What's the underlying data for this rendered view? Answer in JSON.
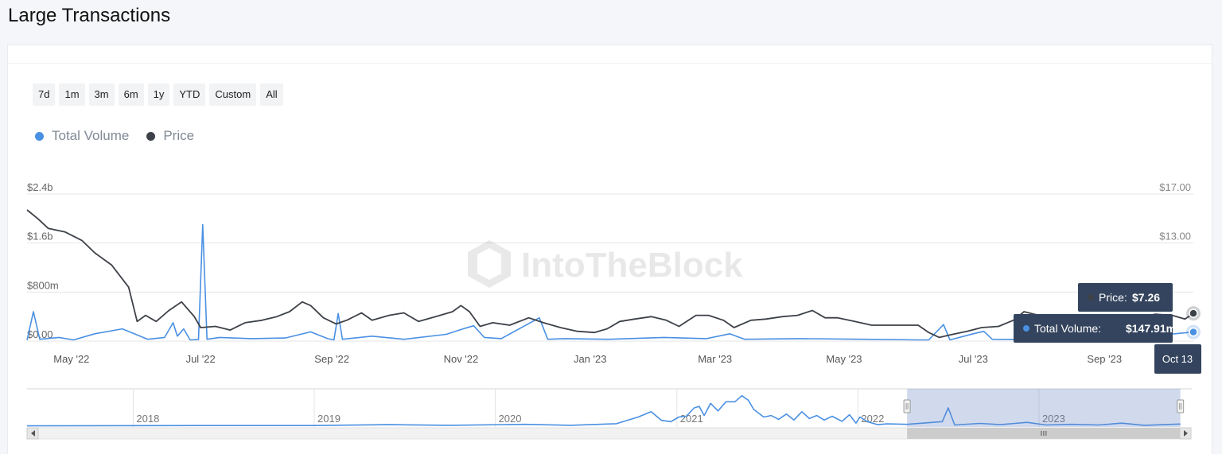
{
  "page": {
    "title": "Large Transactions"
  },
  "range_buttons": [
    "7d",
    "1m",
    "3m",
    "6m",
    "1y",
    "YTD",
    "Custom",
    "All"
  ],
  "legend": [
    {
      "label": "Total Volume",
      "color": "#4a90e2"
    },
    {
      "label": "Price",
      "color": "#3d4148"
    }
  ],
  "watermark": "IntoTheBlock",
  "tooltip": {
    "price_label": "Price:",
    "price_value": "$7.26",
    "volume_label": "Total Volume:",
    "volume_value": "$147.91m",
    "date": "Oct 13"
  },
  "chart_data": {
    "type": "line",
    "left_axis": {
      "ticks": [
        "$0.00",
        "$800m",
        "$1.6b",
        "$2.4b"
      ],
      "values": [
        0,
        800,
        1600,
        2400
      ],
      "unit": "millions USD"
    },
    "right_axis": {
      "ticks": [
        "$13.00",
        "$17.00"
      ],
      "values": [
        13,
        17
      ],
      "range": [
        5,
        17
      ]
    },
    "x_axis": {
      "tick_labels": [
        "May '22",
        "Jul '22",
        "Sep '22",
        "Nov '22",
        "Jan '23",
        "Mar '23",
        "May '23",
        "Jul '23",
        "Sep '23"
      ],
      "tick_dates": [
        "2022-05-01",
        "2022-07-01",
        "2022-09-01",
        "2022-11-01",
        "2023-01-01",
        "2023-03-01",
        "2023-05-01",
        "2023-07-01",
        "2023-09-01"
      ],
      "range": [
        "2022-04-10",
        "2023-10-13"
      ]
    },
    "grid": true,
    "legend_position": "top-left",
    "series": [
      {
        "name": "Price",
        "color": "#3d4148",
        "axis": "right",
        "points": [
          [
            "2022-04-10",
            15.7
          ],
          [
            "2022-04-15",
            15.0
          ],
          [
            "2022-04-20",
            14.2
          ],
          [
            "2022-04-28",
            13.9
          ],
          [
            "2022-05-06",
            13.2
          ],
          [
            "2022-05-12",
            12.2
          ],
          [
            "2022-05-20",
            11.2
          ],
          [
            "2022-05-28",
            9.4
          ],
          [
            "2022-06-01",
            6.6
          ],
          [
            "2022-06-05",
            7.1
          ],
          [
            "2022-06-10",
            6.6
          ],
          [
            "2022-06-16",
            7.5
          ],
          [
            "2022-06-22",
            8.2
          ],
          [
            "2022-06-28",
            7.0
          ],
          [
            "2022-07-01",
            6.1
          ],
          [
            "2022-07-08",
            6.2
          ],
          [
            "2022-07-15",
            5.9
          ],
          [
            "2022-07-22",
            6.5
          ],
          [
            "2022-07-30",
            6.7
          ],
          [
            "2022-08-06",
            7.0
          ],
          [
            "2022-08-12",
            7.4
          ],
          [
            "2022-08-18",
            8.2
          ],
          [
            "2022-08-22",
            7.9
          ],
          [
            "2022-08-28",
            6.9
          ],
          [
            "2022-09-03",
            6.4
          ],
          [
            "2022-09-08",
            6.7
          ],
          [
            "2022-09-15",
            7.3
          ],
          [
            "2022-09-20",
            6.7
          ],
          [
            "2022-09-28",
            7.1
          ],
          [
            "2022-10-05",
            7.3
          ],
          [
            "2022-10-12",
            6.6
          ],
          [
            "2022-10-20",
            7.0
          ],
          [
            "2022-10-28",
            7.4
          ],
          [
            "2022-11-01",
            7.9
          ],
          [
            "2022-11-05",
            7.4
          ],
          [
            "2022-11-10",
            6.2
          ],
          [
            "2022-11-16",
            6.5
          ],
          [
            "2022-11-24",
            6.3
          ],
          [
            "2022-12-03",
            6.9
          ],
          [
            "2022-12-10",
            6.5
          ],
          [
            "2022-12-18",
            6.1
          ],
          [
            "2022-12-26",
            5.8
          ],
          [
            "2023-01-03",
            5.7
          ],
          [
            "2023-01-09",
            6.0
          ],
          [
            "2023-01-15",
            6.6
          ],
          [
            "2023-01-22",
            6.8
          ],
          [
            "2023-01-30",
            7.0
          ],
          [
            "2023-02-06",
            6.7
          ],
          [
            "2023-02-12",
            6.2
          ],
          [
            "2023-02-20",
            7.1
          ],
          [
            "2023-02-26",
            7.1
          ],
          [
            "2023-03-05",
            6.7
          ],
          [
            "2023-03-10",
            6.1
          ],
          [
            "2023-03-18",
            6.7
          ],
          [
            "2023-03-25",
            6.8
          ],
          [
            "2023-04-02",
            7.0
          ],
          [
            "2023-04-09",
            7.1
          ],
          [
            "2023-04-16",
            7.5
          ],
          [
            "2023-04-22",
            6.9
          ],
          [
            "2023-04-28",
            6.9
          ],
          [
            "2023-05-06",
            6.6
          ],
          [
            "2023-05-14",
            6.3
          ],
          [
            "2023-05-22",
            6.3
          ],
          [
            "2023-05-30",
            6.3
          ],
          [
            "2023-06-05",
            6.3
          ],
          [
            "2023-06-10",
            5.7
          ],
          [
            "2023-06-15",
            5.3
          ],
          [
            "2023-06-20",
            5.5
          ],
          [
            "2023-06-28",
            5.8
          ],
          [
            "2023-07-05",
            6.1
          ],
          [
            "2023-07-13",
            6.2
          ],
          [
            "2023-07-20",
            6.7
          ],
          [
            "2023-07-25",
            7.4
          ],
          [
            "2023-08-01",
            7.1
          ],
          [
            "2023-08-06",
            6.8
          ],
          [
            "2023-08-14",
            6.9
          ],
          [
            "2023-08-20",
            6.6
          ],
          [
            "2023-08-28",
            6.8
          ],
          [
            "2023-09-05",
            7.0
          ],
          [
            "2023-09-15",
            6.8
          ],
          [
            "2023-09-25",
            7.2
          ],
          [
            "2023-10-03",
            7.1
          ],
          [
            "2023-10-09",
            6.8
          ],
          [
            "2023-10-13",
            7.26
          ]
        ]
      },
      {
        "name": "Total Volume",
        "color": "#4a90e2",
        "axis": "left",
        "points": [
          [
            "2022-04-10",
            15
          ],
          [
            "2022-04-13",
            480
          ],
          [
            "2022-04-16",
            30
          ],
          [
            "2022-04-25",
            60
          ],
          [
            "2022-05-02",
            20
          ],
          [
            "2022-05-12",
            120
          ],
          [
            "2022-05-25",
            200
          ],
          [
            "2022-06-01",
            100
          ],
          [
            "2022-06-06",
            30
          ],
          [
            "2022-06-14",
            60
          ],
          [
            "2022-06-18",
            300
          ],
          [
            "2022-06-20",
            80
          ],
          [
            "2022-06-23",
            200
          ],
          [
            "2022-06-26",
            20
          ],
          [
            "2022-06-30",
            25
          ],
          [
            "2022-07-02",
            1900
          ],
          [
            "2022-07-04",
            30
          ],
          [
            "2022-07-10",
            60
          ],
          [
            "2022-07-25",
            40
          ],
          [
            "2022-08-10",
            50
          ],
          [
            "2022-08-22",
            150
          ],
          [
            "2022-08-30",
            40
          ],
          [
            "2022-09-02",
            20
          ],
          [
            "2022-09-04",
            450
          ],
          [
            "2022-09-06",
            30
          ],
          [
            "2022-09-20",
            80
          ],
          [
            "2022-10-05",
            30
          ],
          [
            "2022-10-25",
            110
          ],
          [
            "2022-11-03",
            210
          ],
          [
            "2022-11-07",
            250
          ],
          [
            "2022-11-12",
            60
          ],
          [
            "2022-11-20",
            40
          ],
          [
            "2022-12-08",
            380
          ],
          [
            "2022-12-12",
            30
          ],
          [
            "2022-12-20",
            40
          ],
          [
            "2023-01-10",
            30
          ],
          [
            "2023-02-05",
            60
          ],
          [
            "2023-02-25",
            40
          ],
          [
            "2023-03-08",
            120
          ],
          [
            "2023-03-15",
            30
          ],
          [
            "2023-04-10",
            40
          ],
          [
            "2023-05-10",
            30
          ],
          [
            "2023-06-05",
            20
          ],
          [
            "2023-06-10",
            20
          ],
          [
            "2023-06-17",
            270
          ],
          [
            "2023-06-20",
            20
          ],
          [
            "2023-07-01",
            120
          ],
          [
            "2023-07-06",
            160
          ],
          [
            "2023-07-10",
            30
          ],
          [
            "2023-08-01",
            25
          ],
          [
            "2023-08-20",
            50
          ],
          [
            "2023-09-10",
            40
          ],
          [
            "2023-10-13",
            147.91
          ]
        ]
      }
    ],
    "navigator": {
      "year_labels": [
        "2018",
        "2019",
        "2020",
        "2021",
        "2022",
        "2023"
      ],
      "year_dates": [
        "2018-01-01",
        "2019-01-01",
        "2020-01-01",
        "2021-01-01",
        "2022-01-01",
        "2023-01-01"
      ],
      "range": [
        "2017-06-01",
        "2023-11-05"
      ],
      "selected_range": [
        "2022-04-10",
        "2023-10-13"
      ],
      "series_name": "Total Volume",
      "ylim": [
        0,
        2400
      ],
      "points": [
        [
          "2017-06-01",
          20
        ],
        [
          "2018-06-01",
          40
        ],
        [
          "2019-01-01",
          40
        ],
        [
          "2019-06-01",
          100
        ],
        [
          "2019-10-01",
          60
        ],
        [
          "2020-03-01",
          120
        ],
        [
          "2020-06-01",
          60
        ],
        [
          "2020-09-01",
          160
        ],
        [
          "2020-10-15",
          600
        ],
        [
          "2020-11-10",
          950
        ],
        [
          "2020-12-01",
          380
        ],
        [
          "2020-12-20",
          300
        ],
        [
          "2021-01-05",
          600
        ],
        [
          "2021-01-20",
          650
        ],
        [
          "2021-02-05",
          1200
        ],
        [
          "2021-02-15",
          1300
        ],
        [
          "2021-02-25",
          700
        ],
        [
          "2021-03-10",
          1500
        ],
        [
          "2021-03-25",
          1000
        ],
        [
          "2021-04-10",
          1600
        ],
        [
          "2021-04-28",
          1600
        ],
        [
          "2021-05-12",
          2000
        ],
        [
          "2021-05-25",
          1700
        ],
        [
          "2021-06-05",
          1100
        ],
        [
          "2021-06-25",
          600
        ],
        [
          "2021-07-10",
          700
        ],
        [
          "2021-07-25",
          450
        ],
        [
          "2021-08-10",
          800
        ],
        [
          "2021-08-25",
          400
        ],
        [
          "2021-09-10",
          950
        ],
        [
          "2021-09-25",
          500
        ],
        [
          "2021-10-10",
          700
        ],
        [
          "2021-10-25",
          400
        ],
        [
          "2021-11-10",
          650
        ],
        [
          "2021-11-30",
          320
        ],
        [
          "2021-12-15",
          750
        ],
        [
          "2021-12-28",
          200
        ],
        [
          "2022-01-05",
          600
        ],
        [
          "2022-01-20",
          300
        ],
        [
          "2022-02-10",
          100
        ],
        [
          "2022-03-01",
          150
        ],
        [
          "2022-04-10",
          120
        ],
        [
          "2022-06-20",
          300
        ],
        [
          "2022-07-02",
          1200
        ],
        [
          "2022-07-15",
          80
        ],
        [
          "2022-09-04",
          180
        ],
        [
          "2022-10-15",
          100
        ],
        [
          "2022-12-08",
          250
        ],
        [
          "2023-01-15",
          80
        ],
        [
          "2023-03-08",
          120
        ],
        [
          "2023-05-01",
          80
        ],
        [
          "2023-06-17",
          200
        ],
        [
          "2023-08-01",
          60
        ],
        [
          "2023-10-13",
          140
        ]
      ]
    }
  }
}
